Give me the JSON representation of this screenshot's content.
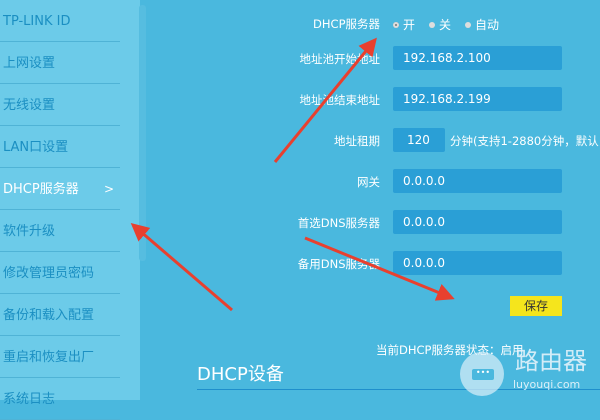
{
  "sidebar": {
    "items": [
      {
        "label": "TP-LINK ID"
      },
      {
        "label": "上网设置"
      },
      {
        "label": "无线设置"
      },
      {
        "label": "LAN口设置"
      },
      {
        "label": "DHCP服务器",
        "chevron": ">"
      },
      {
        "label": "软件升级"
      },
      {
        "label": "修改管理员密码"
      },
      {
        "label": "备份和载入配置"
      },
      {
        "label": "重启和恢复出厂"
      },
      {
        "label": "系统日志"
      }
    ],
    "active_index": 4
  },
  "form": {
    "dhcp_label": "DHCP服务器",
    "options": [
      "开",
      "关",
      "自动"
    ],
    "selected_option": "开",
    "start_label": "地址池开始地址",
    "start_value": "192.168.2.100",
    "end_label": "地址池结束地址",
    "end_value": "192.168.2.199",
    "lease_label": "地址租期",
    "lease_value": "120",
    "lease_hint": "分钟(支持1-2880分钟，默认",
    "gateway_label": "网关",
    "gateway_value": "0.0.0.0",
    "dns1_label": "首选DNS服务器",
    "dns1_value": "0.0.0.0",
    "dns2_label": "备用DNS服务器",
    "dns2_value": "0.0.0.0",
    "save_label": "保存"
  },
  "status_text": "当前DHCP服务器状态：启用",
  "section_title": "DHCP设备",
  "watermark": {
    "title": "路由器",
    "url": "luyouqi.com",
    "icon": "chat-bubble-icon"
  },
  "colors": {
    "background": "#4ab8de",
    "sidebar": "#6ccbe9",
    "input": "#2a9fd6",
    "save": "#f5e51c",
    "arrow": "#e8402f"
  }
}
